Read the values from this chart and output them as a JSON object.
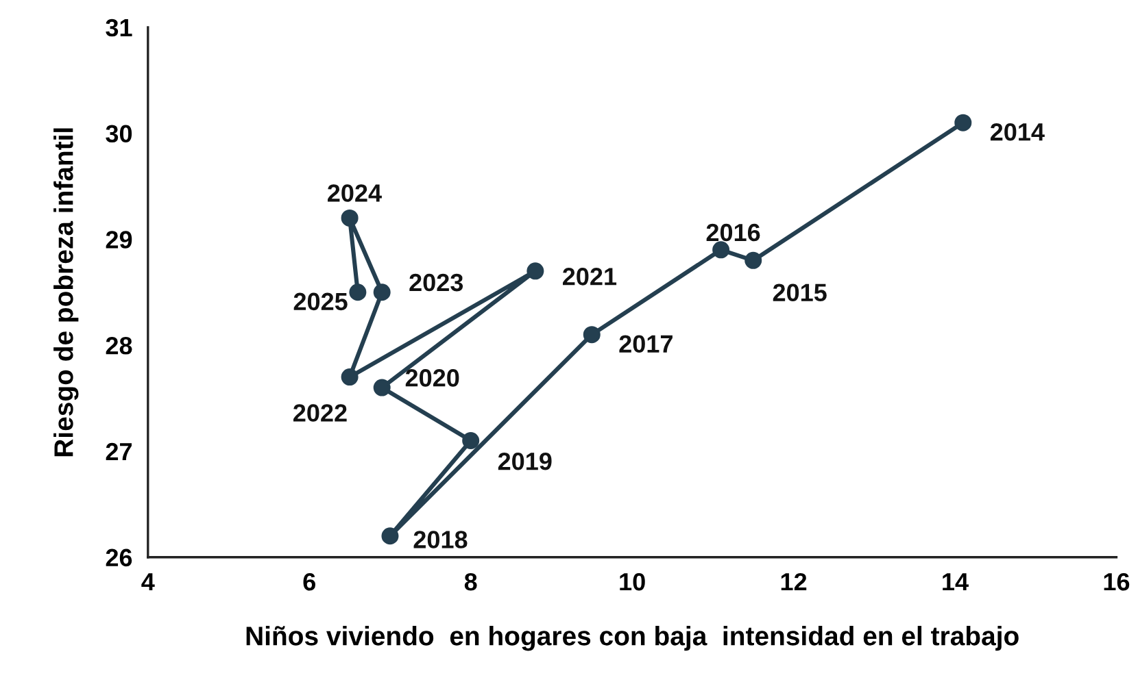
{
  "chart_data": {
    "type": "line",
    "xlabel": "Niños viviendo  en hogares con baja  intensidad en el trabajo",
    "ylabel": "Riesgo de pobreza infantil",
    "series": [
      {
        "color": "#243f50",
        "x": [
          14.1,
          11.5,
          11.1,
          9.5,
          7.0,
          8.0,
          6.9,
          8.8,
          6.5,
          6.9,
          6.5,
          6.6
        ],
        "values": [
          30.1,
          28.8,
          28.9,
          28.1,
          26.2,
          27.1,
          27.6,
          28.7,
          27.7,
          28.5,
          29.2,
          28.5
        ]
      }
    ],
    "annotations": [
      {
        "text": "2014",
        "x": 14.1,
        "y": 30.1
      },
      {
        "text": "2015",
        "x": 11.5,
        "y": 28.8
      },
      {
        "text": "2016",
        "x": 11.1,
        "y": 28.9
      },
      {
        "text": "2017",
        "x": 9.5,
        "y": 28.1
      },
      {
        "text": "2018",
        "x": 7.0,
        "y": 26.2
      },
      {
        "text": "2019",
        "x": 8.0,
        "y": 27.1
      },
      {
        "text": "2020",
        "x": 6.9,
        "y": 27.6
      },
      {
        "text": "2021",
        "x": 8.8,
        "y": 28.7
      },
      {
        "text": "2022",
        "x": 6.5,
        "y": 27.7
      },
      {
        "text": "2023",
        "x": 6.9,
        "y": 28.5
      },
      {
        "text": "2024",
        "x": 6.5,
        "y": 29.2
      },
      {
        "text": "2025",
        "x": 6.6,
        "y": 28.5
      }
    ],
    "xlim": [
      4,
      16
    ],
    "xticks": [
      4,
      6,
      8,
      10,
      12,
      14,
      16
    ],
    "ylim": [
      26,
      31
    ],
    "yticks": [
      26,
      27,
      28,
      29,
      30,
      31
    ],
    "grid": false,
    "legend": false,
    "marker": "circle",
    "line_style": "solid"
  }
}
